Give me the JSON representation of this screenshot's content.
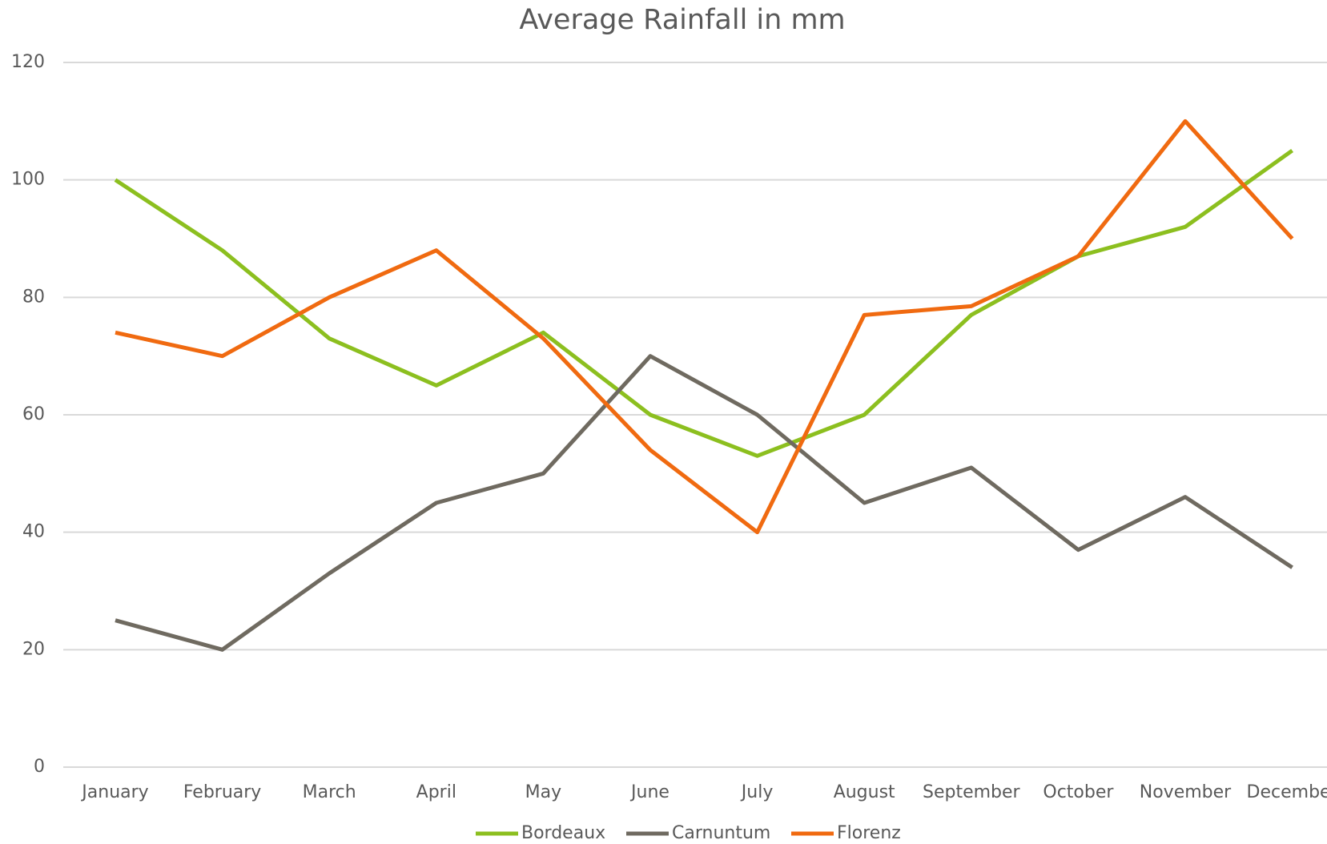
{
  "chart_data": {
    "type": "line",
    "title": "Average Rainfall in mm",
    "categories": [
      "January",
      "February",
      "March",
      "April",
      "May",
      "June",
      "July",
      "August",
      "September",
      "October",
      "November",
      "December"
    ],
    "series": [
      {
        "name": "Bordeaux",
        "color": "#8cbf1f",
        "values": [
          100,
          88,
          73,
          65,
          74,
          60,
          53,
          60,
          77,
          87,
          92,
          105
        ]
      },
      {
        "name": "Carnuntum",
        "color": "#6f6a60",
        "values": [
          25,
          20,
          33,
          45,
          50,
          70,
          60,
          45,
          51,
          37,
          46,
          34
        ]
      },
      {
        "name": "Florenz",
        "color": "#f06a10",
        "values": [
          74,
          70,
          80,
          88,
          73,
          54,
          40,
          77,
          78.5,
          87,
          110,
          90
        ]
      }
    ],
    "ylim": [
      0,
      120
    ],
    "yticks": [
      0,
      20,
      40,
      60,
      80,
      100,
      120
    ],
    "grid": true,
    "legend": "bottom"
  }
}
